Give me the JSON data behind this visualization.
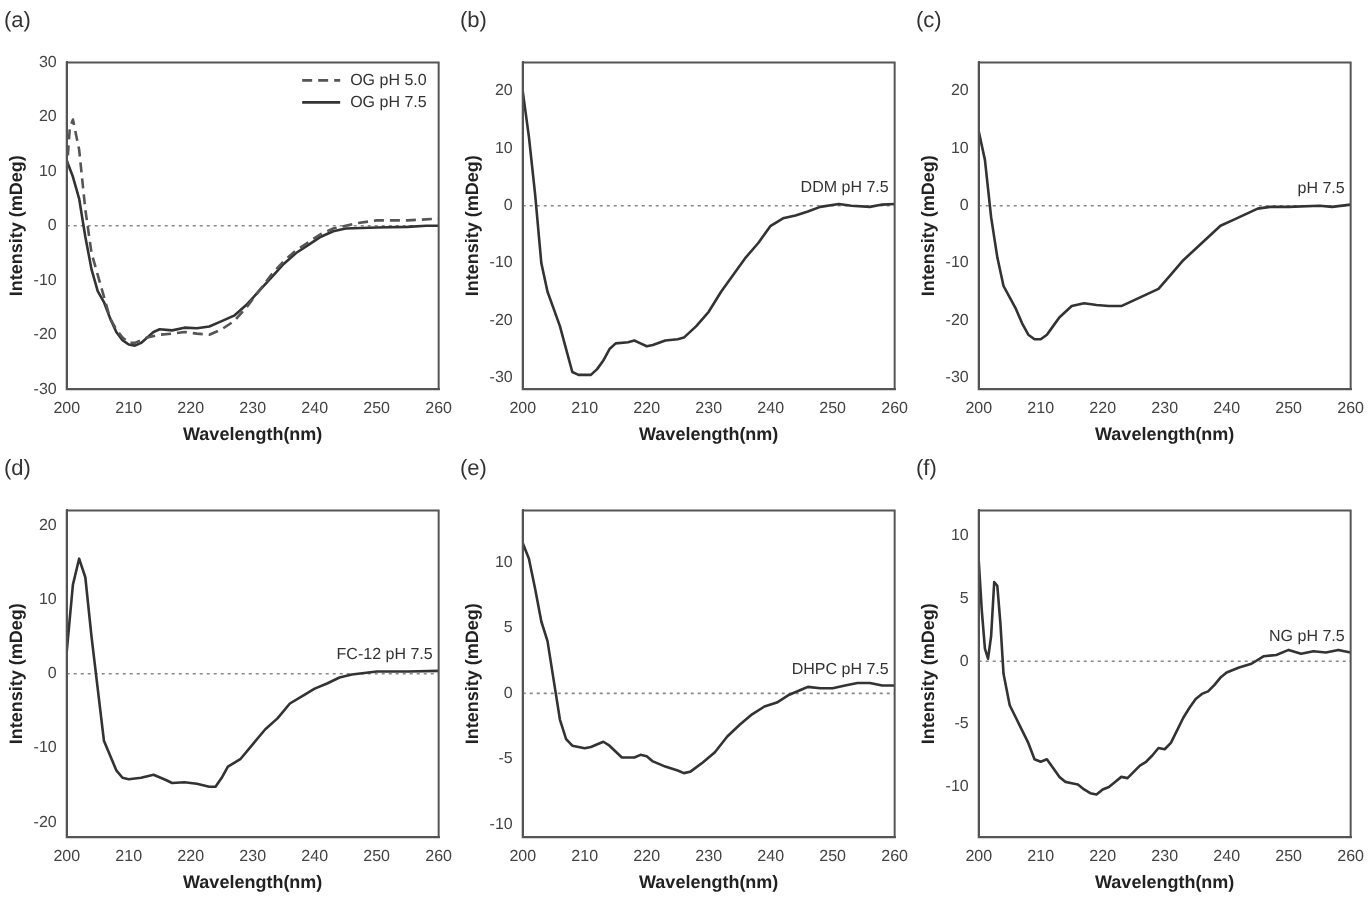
{
  "chart_data": [
    {
      "type": "line",
      "title": "(a)",
      "xlabel": "Wavelength(nm)",
      "ylabel": "Intensity (mDeg)",
      "xlim": [
        200,
        260
      ],
      "xticks": [
        200,
        210,
        220,
        230,
        240,
        250,
        260
      ],
      "ylim": [
        -30,
        30
      ],
      "yticks": [
        -30,
        -20,
        -10,
        0,
        10,
        20,
        30
      ],
      "legend": "top right",
      "ref_lines": [
        {
          "axis": "y",
          "value": 0,
          "line_style": "dotted",
          "color": "#888888"
        }
      ],
      "series": [
        {
          "name": "OG pH 5.0",
          "color": "#555555",
          "line_style": "dashed",
          "x": [
            200,
            200.5,
            201,
            202,
            203,
            204,
            205,
            206,
            207,
            208,
            209,
            210,
            211,
            212,
            213,
            215,
            217,
            219,
            221,
            223,
            225,
            227,
            229,
            231,
            233,
            235,
            237,
            239,
            241,
            243,
            245,
            247,
            250,
            255,
            260
          ],
          "values": [
            10,
            18,
            19.5,
            14,
            3,
            -5,
            -9,
            -13,
            -17,
            -19,
            -20.5,
            -21.5,
            -21.5,
            -21,
            -20.5,
            -20,
            -19.8,
            -19.5,
            -19.8,
            -20,
            -19,
            -17.5,
            -15,
            -12,
            -9,
            -6.5,
            -4.5,
            -3,
            -1.5,
            -0.5,
            0,
            0.5,
            1,
            1,
            1.3
          ]
        },
        {
          "name": "OG pH 7.5",
          "color": "#333333",
          "line_style": "solid",
          "x": [
            200,
            201,
            202,
            203,
            204,
            205,
            206,
            207,
            208,
            209,
            210,
            211,
            212,
            213,
            214,
            215,
            217,
            219,
            221,
            223,
            225,
            227,
            229,
            231,
            233,
            235,
            237,
            239,
            241,
            243,
            245,
            250,
            255,
            258,
            260
          ],
          "values": [
            12,
            9,
            5,
            -2,
            -8,
            -12,
            -14,
            -17,
            -19.5,
            -21,
            -21.8,
            -22,
            -21.5,
            -20.5,
            -19.5,
            -19,
            -19.2,
            -18.7,
            -18.8,
            -18.5,
            -17.5,
            -16.5,
            -14.5,
            -12,
            -9.5,
            -7,
            -5,
            -3.5,
            -2,
            -1,
            -0.5,
            -0.3,
            -0.2,
            0,
            0
          ]
        }
      ]
    },
    {
      "type": "line",
      "title": "(b)",
      "xlabel": "Wavelength(nm)",
      "ylabel": "Intensity (mDeg)",
      "xlim": [
        200,
        260
      ],
      "xticks": [
        200,
        210,
        220,
        230,
        240,
        250,
        260
      ],
      "ylim": [
        -32,
        25
      ],
      "yticks": [
        -30,
        -20,
        -10,
        0,
        10,
        20
      ],
      "ref_lines": [
        {
          "axis": "y",
          "value": 0,
          "line_style": "dotted",
          "color": "#888888"
        }
      ],
      "series": [
        {
          "name": "DDM pH 7.5",
          "color": "#333333",
          "line_style": "solid",
          "x": [
            200,
            201,
            202,
            203,
            204,
            205,
            206,
            207,
            208,
            209,
            210,
            211,
            212,
            213,
            214,
            215,
            217,
            218,
            219,
            220,
            221,
            223,
            225,
            226,
            228,
            230,
            232,
            234,
            236,
            238,
            240,
            242,
            244,
            246,
            248,
            251,
            253,
            256,
            258,
            260
          ],
          "values": [
            20,
            12,
            2,
            -10,
            -15,
            -18,
            -21,
            -25,
            -29,
            -29.5,
            -29.5,
            -29.5,
            -28.5,
            -27,
            -25,
            -24,
            -23.8,
            -23.5,
            -24,
            -24.5,
            -24.3,
            -23.5,
            -23.3,
            -23,
            -21,
            -18.5,
            -15,
            -12,
            -9,
            -6.5,
            -3.5,
            -2.2,
            -1.7,
            -1,
            -0.2,
            0.3,
            0,
            -0.2,
            0.2,
            0.3
          ]
        }
      ]
    },
    {
      "type": "line",
      "title": "(c)",
      "xlabel": "Wavelength(nm)",
      "ylabel": "Intensity (mDeg)",
      "xlim": [
        200,
        260
      ],
      "xticks": [
        200,
        210,
        220,
        230,
        240,
        250,
        260
      ],
      "ylim": [
        -32,
        25
      ],
      "yticks": [
        -30,
        -20,
        -10,
        0,
        10,
        20
      ],
      "ref_lines": [
        {
          "axis": "y",
          "value": 0,
          "line_style": "dotted",
          "color": "#888888"
        }
      ],
      "series": [
        {
          "name": "pH 7.5",
          "color": "#333333",
          "line_style": "solid",
          "x": [
            200,
            201,
            202,
            203,
            204,
            205,
            206,
            207,
            208,
            209,
            210,
            211,
            212,
            213,
            215,
            217,
            219,
            221,
            223,
            225,
            227,
            229,
            231,
            233,
            235,
            237,
            239,
            241,
            243,
            245,
            247,
            250,
            255,
            257,
            260
          ],
          "values": [
            13,
            8,
            -2,
            -9,
            -14,
            -16,
            -18,
            -20.5,
            -22.5,
            -23.3,
            -23.3,
            -22.5,
            -21,
            -19.5,
            -17.5,
            -17,
            -17.3,
            -17.5,
            -17.5,
            -16.5,
            -15.5,
            -14.5,
            -12,
            -9.5,
            -7.5,
            -5.5,
            -3.5,
            -2.5,
            -1.5,
            -0.5,
            -0.2,
            -0.2,
            0,
            -0.2,
            0.2
          ]
        }
      ]
    },
    {
      "type": "line",
      "title": "(d)",
      "xlabel": "Wavelength(nm)",
      "ylabel": "Intensity (mDeg)",
      "xlim": [
        200,
        260
      ],
      "xticks": [
        200,
        210,
        220,
        230,
        240,
        250,
        260
      ],
      "ylim": [
        -22,
        22
      ],
      "yticks": [
        -20,
        -10,
        0,
        10,
        20
      ],
      "ref_lines": [
        {
          "axis": "y",
          "value": 0,
          "line_style": "dotted",
          "color": "#888888"
        }
      ],
      "series": [
        {
          "name": "FC-12 pH 7.5",
          "color": "#333333",
          "line_style": "solid",
          "x": [
            200,
            201,
            202,
            203,
            204,
            205,
            206,
            207,
            208,
            209,
            210,
            212,
            214,
            216,
            217,
            219,
            221,
            223,
            224,
            225,
            226,
            228,
            230,
            232,
            234,
            236,
            238,
            240,
            242,
            244,
            246,
            250,
            255,
            260
          ],
          "values": [
            3,
            12,
            15.5,
            13,
            5,
            -2,
            -9,
            -11,
            -13,
            -14,
            -14.2,
            -14,
            -13.6,
            -14.3,
            -14.7,
            -14.6,
            -14.8,
            -15.2,
            -15.2,
            -14,
            -12.5,
            -11.5,
            -9.5,
            -7.5,
            -6,
            -4,
            -3,
            -2,
            -1.3,
            -0.5,
            -0.1,
            0.3,
            0.3,
            0.4
          ]
        }
      ]
    },
    {
      "type": "line",
      "title": "(e)",
      "xlabel": "Wavelength(nm)",
      "ylabel": "Intensity (mDeg)",
      "xlim": [
        200,
        260
      ],
      "xticks": [
        200,
        210,
        220,
        230,
        240,
        250,
        260
      ],
      "ylim": [
        -11,
        14
      ],
      "yticks": [
        -10,
        -5,
        0,
        5,
        10
      ],
      "ref_lines": [
        {
          "axis": "y",
          "value": 0,
          "line_style": "dotted",
          "color": "#888888"
        }
      ],
      "series": [
        {
          "name": "DHPC pH 7.5",
          "color": "#333333",
          "line_style": "solid",
          "x": [
            200,
            201,
            202,
            203,
            204,
            205,
            206,
            207,
            208,
            210,
            211,
            213,
            214,
            216,
            218,
            219,
            220,
            221,
            223,
            225,
            226,
            227,
            229,
            231,
            233,
            235,
            237,
            239,
            241,
            243,
            245,
            246,
            248,
            250,
            252,
            254,
            256,
            258,
            260
          ],
          "values": [
            11.5,
            10.3,
            8,
            5.5,
            4,
            1,
            -2,
            -3.5,
            -4,
            -4.2,
            -4.1,
            -3.7,
            -4,
            -4.9,
            -4.9,
            -4.7,
            -4.8,
            -5.2,
            -5.6,
            -5.9,
            -6.1,
            -6,
            -5.3,
            -4.5,
            -3.3,
            -2.4,
            -1.6,
            -1,
            -0.7,
            -0.1,
            0.3,
            0.5,
            0.4,
            0.4,
            0.6,
            0.8,
            0.8,
            0.6,
            0.6
          ]
        }
      ]
    },
    {
      "type": "line",
      "title": "(f)",
      "xlabel": "Wavelength(nm)",
      "ylabel": "Intensity (mDeg)",
      "xlim": [
        200,
        260
      ],
      "xticks": [
        200,
        210,
        220,
        230,
        240,
        250,
        260
      ],
      "ylim": [
        -14,
        12
      ],
      "yticks": [
        -10,
        -5,
        0,
        5,
        10
      ],
      "ref_lines": [
        {
          "axis": "y",
          "value": 0,
          "line_style": "dotted",
          "color": "#888888"
        }
      ],
      "series": [
        {
          "name": "NG pH 7.5",
          "color": "#333333",
          "line_style": "solid",
          "x": [
            200,
            200.5,
            201,
            201.5,
            202,
            202.5,
            203,
            203.5,
            204,
            205,
            206,
            207,
            208,
            209,
            210,
            211,
            212,
            213,
            214,
            215,
            216,
            217,
            218,
            219,
            220,
            221,
            222,
            223,
            224,
            225,
            226,
            227,
            228,
            229,
            230,
            231,
            232,
            233,
            234,
            235,
            236,
            237,
            238,
            239,
            240,
            242,
            244,
            246,
            248,
            250,
            252,
            254,
            256,
            258,
            260
          ],
          "values": [
            8,
            4,
            1,
            0.2,
            2,
            6.3,
            6,
            3,
            -1,
            -3.5,
            -4.5,
            -5.5,
            -6.5,
            -7.8,
            -8,
            -7.8,
            -8.5,
            -9.2,
            -9.6,
            -9.7,
            -9.8,
            -10.2,
            -10.5,
            -10.6,
            -10.2,
            -10,
            -9.6,
            -9.2,
            -9.3,
            -8.8,
            -8.3,
            -8,
            -7.5,
            -6.9,
            -7,
            -6.5,
            -5.5,
            -4.5,
            -3.7,
            -3,
            -2.6,
            -2.4,
            -1.9,
            -1.3,
            -0.9,
            -0.5,
            -0.2,
            0.4,
            0.5,
            0.9,
            0.6,
            0.8,
            0.7,
            0.9,
            0.7
          ]
        }
      ]
    }
  ]
}
